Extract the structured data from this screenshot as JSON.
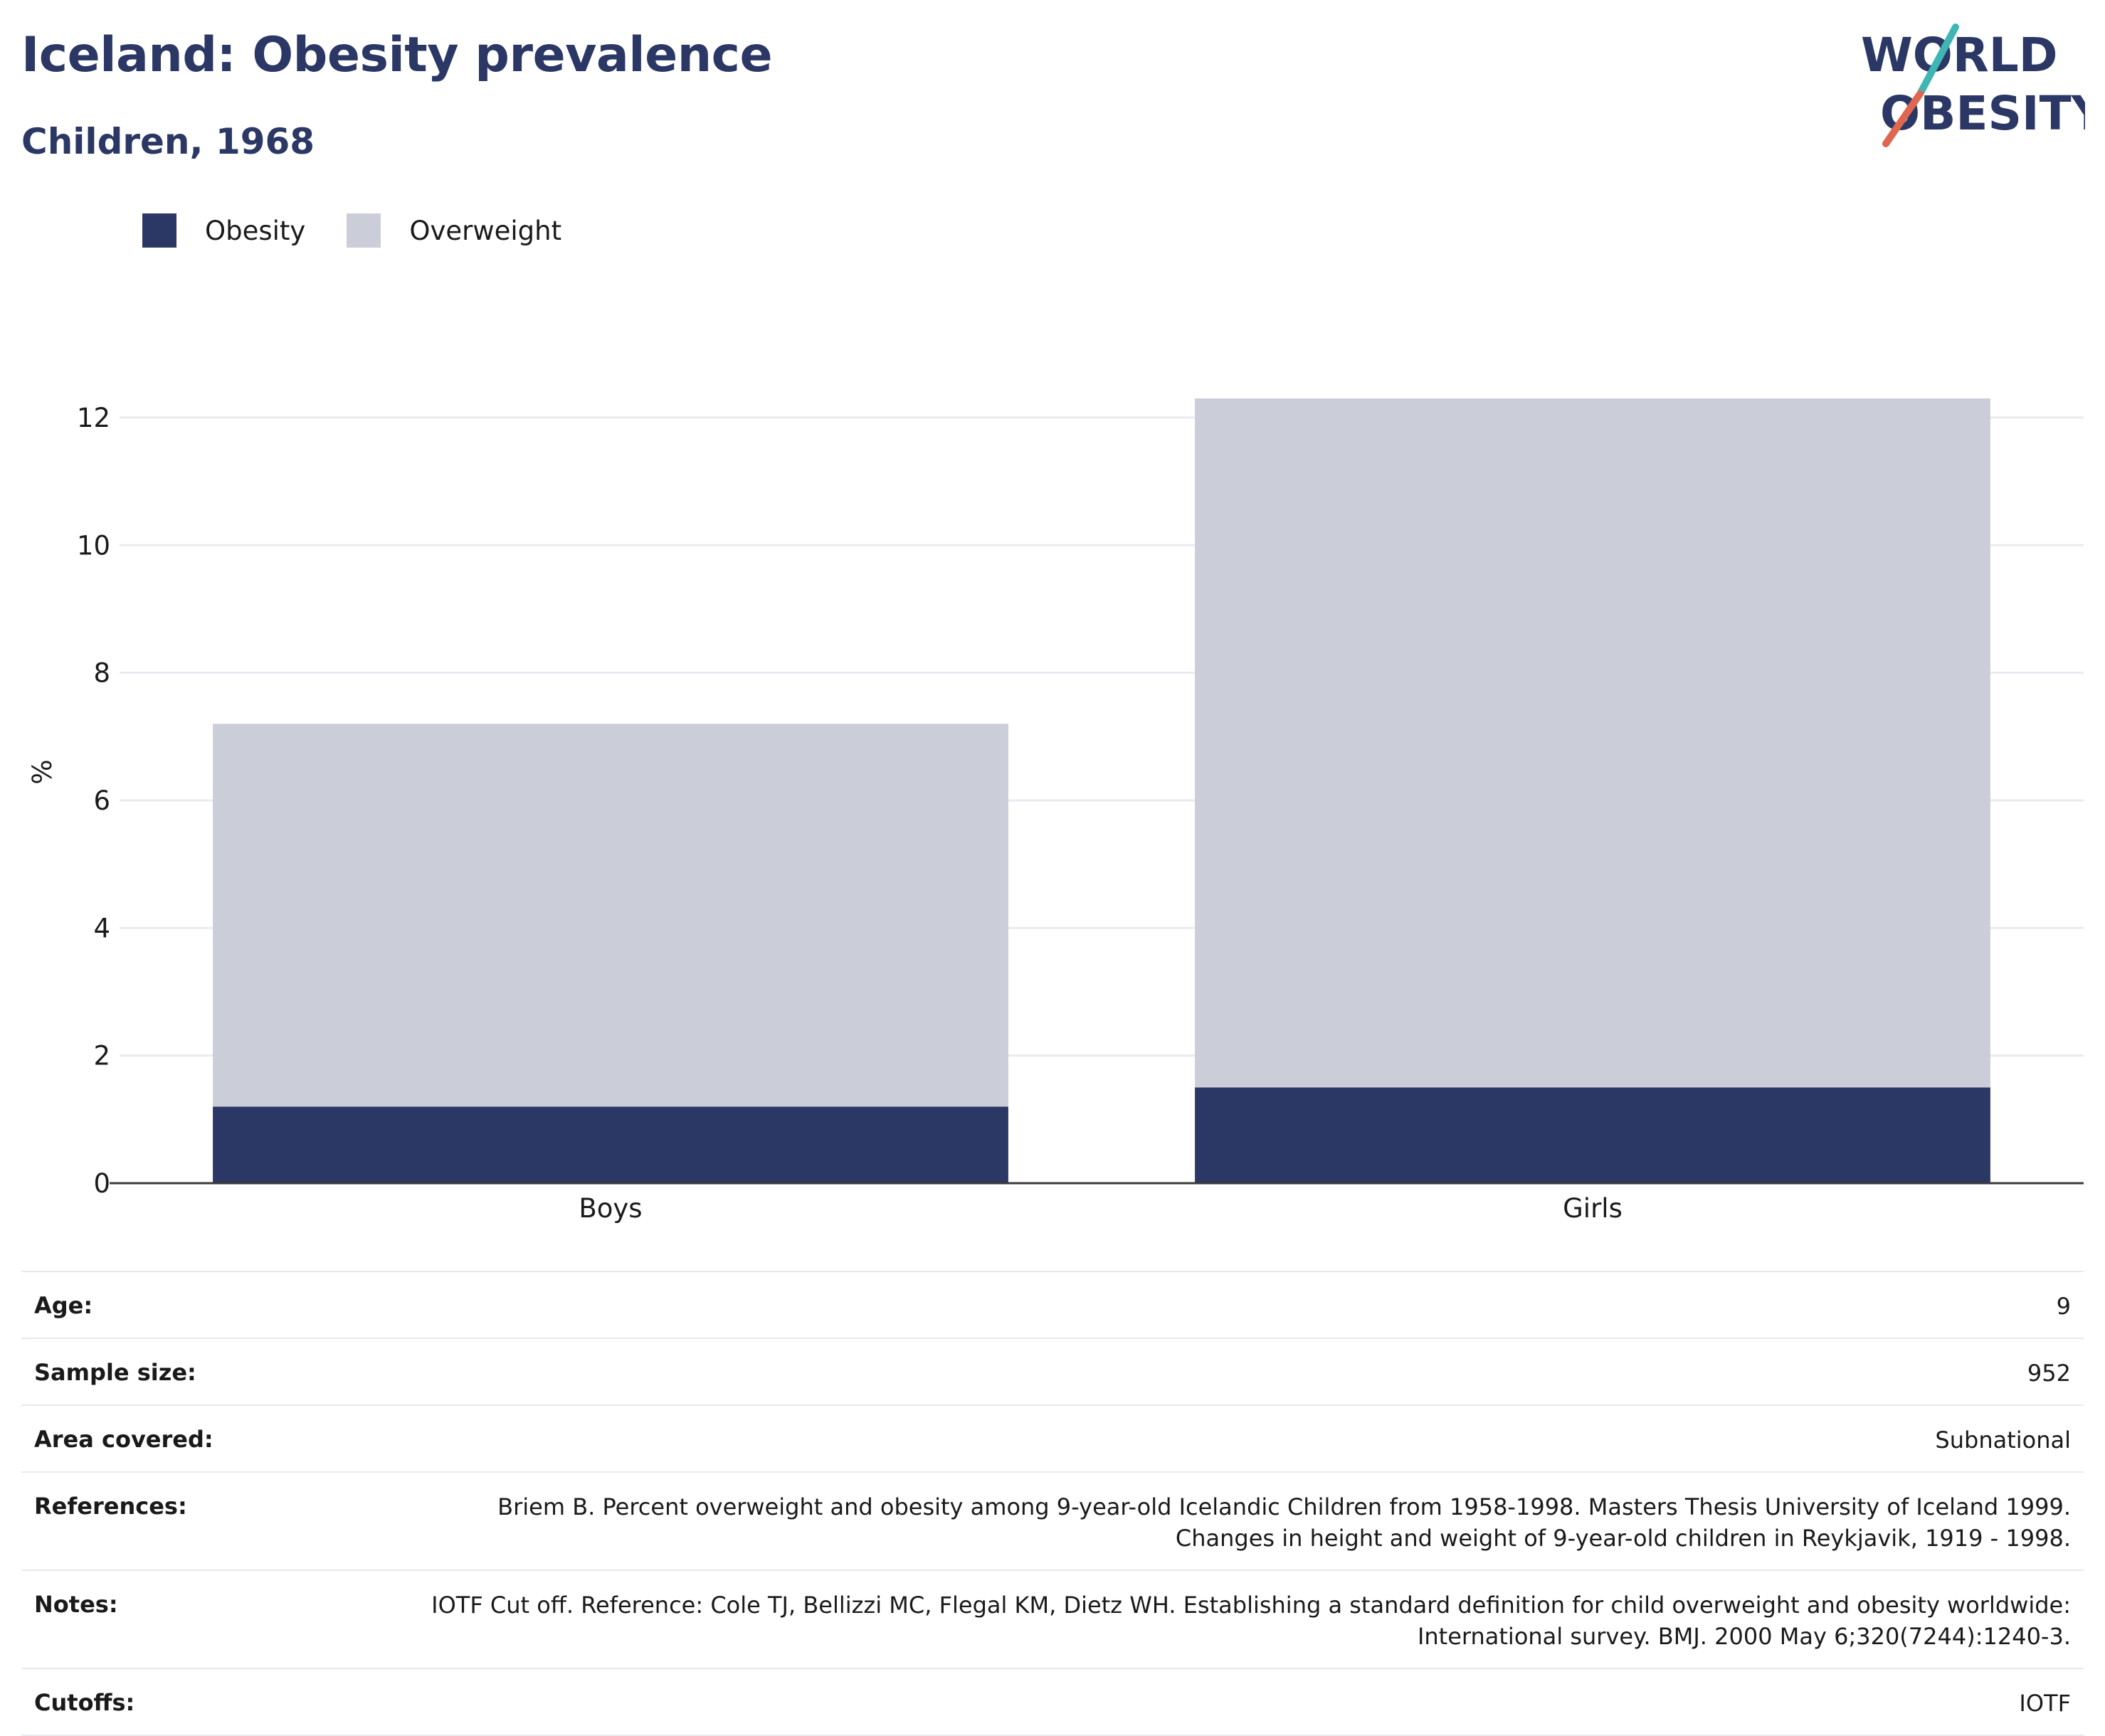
{
  "header": {
    "title": "Iceland: Obesity prevalence",
    "subtitle": "Children, 1968"
  },
  "logo": {
    "line1": "WORLD",
    "line2": "OBESITY"
  },
  "legend": [
    {
      "label": "Obesity",
      "color": "#2b3764"
    },
    {
      "label": "Overweight",
      "color": "#cbcdd8"
    }
  ],
  "chart_data": {
    "type": "bar",
    "stacked": true,
    "categories": [
      "Boys",
      "Girls"
    ],
    "series": [
      {
        "name": "Obesity",
        "color": "#2b3764",
        "values": [
          1.2,
          1.5
        ]
      },
      {
        "name": "Overweight",
        "color": "#cbcdd8",
        "values": [
          6.0,
          10.8
        ]
      }
    ],
    "ylabel": "%",
    "ylim": [
      0,
      12.3
    ],
    "yticks": [
      0,
      2,
      4,
      6,
      8,
      10,
      12
    ],
    "grid": true,
    "legend_position": "top-left"
  },
  "metadata": [
    {
      "key": "Age:",
      "value": "9"
    },
    {
      "key": "Sample size:",
      "value": "952"
    },
    {
      "key": "Area covered:",
      "value": "Subnational"
    },
    {
      "key": "References:",
      "value": "Briem B. Percent overweight and obesity among 9-year-old Icelandic Children from 1958-1998. Masters Thesis University of Iceland 1999. Changes in height and weight of 9-year-old children in Reykjavik, 1919 - 1998."
    },
    {
      "key": "Notes:",
      "value": "IOTF Cut off. Reference: Cole TJ, Bellizzi MC, Flegal KM, Dietz WH. Establishing a standard definition for child overweight and obesity worldwide: International survey. BMJ. 2000 May 6;320(7244):1240-3."
    },
    {
      "key": "Cutoffs:",
      "value": "IOTF"
    }
  ]
}
